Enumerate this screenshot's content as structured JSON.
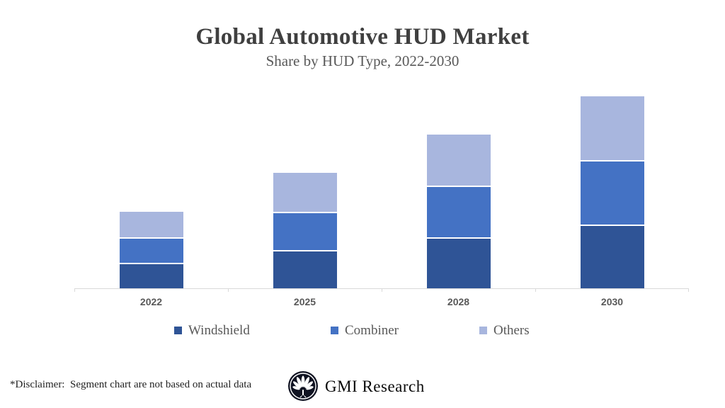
{
  "header": {
    "title": "Global Automotive HUD Market",
    "subtitle": "Share by HUD Type, 2022-2030"
  },
  "chart_data": {
    "type": "bar",
    "stacked": true,
    "title": "Global Automotive HUD Market",
    "subtitle": "Share by HUD Type, 2022-2030",
    "categories": [
      "2022",
      "2025",
      "2028",
      "2030"
    ],
    "series": [
      {
        "name": "Windshield",
        "color": "#2F5496",
        "values": [
          2,
          3,
          4,
          5
        ]
      },
      {
        "name": "Combiner",
        "color": "#4472C4",
        "values": [
          2,
          3,
          4,
          5
        ]
      },
      {
        "name": "Others",
        "color": "#A8B6DE",
        "values": [
          2,
          3,
          4,
          5
        ]
      }
    ],
    "stack_totals": [
      6,
      9,
      12,
      15
    ],
    "xlabel": "",
    "ylabel": "",
    "ylim": [
      0,
      15
    ],
    "y_axis_visible": false,
    "gridlines": false,
    "legend_position": "bottom"
  },
  "footer": {
    "disclaimer": "*Disclaimer:  Segment chart are not based on actual data",
    "brand": "GMI Research",
    "logo_icon": "tree-fan-logo"
  },
  "colors": {
    "title_text": "#3f3f3f",
    "subtitle_text": "#595959",
    "axis_line": "#d9d9d9",
    "axis_label_text": "#595959",
    "legend_text": "#595959",
    "segment_gap": "#ffffff",
    "logo_bg": "#101322"
  }
}
